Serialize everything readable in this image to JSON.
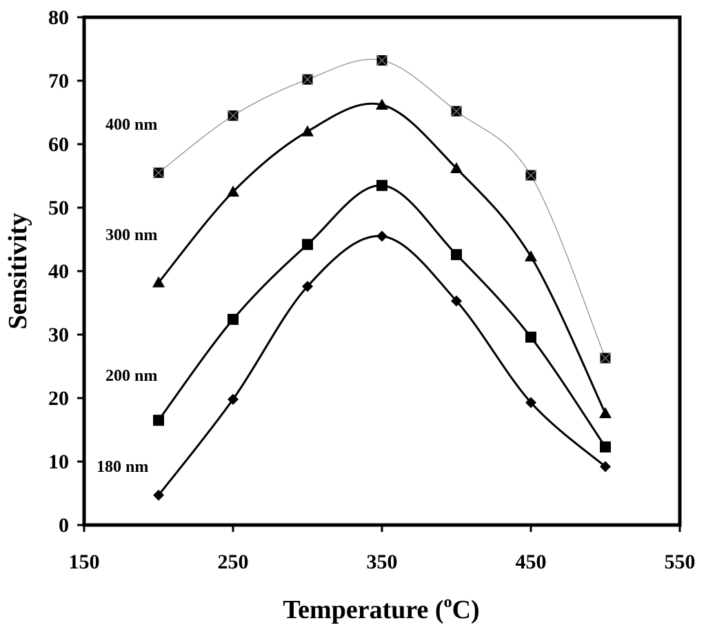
{
  "chart_data": {
    "type": "line",
    "title": "",
    "xlabel": "Temperature (",
    "xlabel_sup": "o",
    "xlabel_suffix": "C)",
    "ylabel": "Sensitivity",
    "xlim": [
      150,
      550
    ],
    "ylim": [
      0,
      80
    ],
    "x_ticks": [
      150,
      250,
      350,
      450,
      550
    ],
    "y_ticks": [
      0,
      10,
      20,
      30,
      40,
      50,
      60,
      70,
      80
    ],
    "grid": false,
    "legend": "inline labels",
    "series": [
      {
        "name": "400 nm",
        "marker": "square-x",
        "line": "thin",
        "x": [
          200,
          250,
          300,
          350,
          400,
          450,
          500
        ],
        "y": [
          55.5,
          64.5,
          70.2,
          73.2,
          65.2,
          55.1,
          26.3
        ]
      },
      {
        "name": "300 nm",
        "marker": "triangle",
        "line": "thick",
        "x": [
          200,
          250,
          300,
          350,
          400,
          450,
          500
        ],
        "y": [
          38.2,
          52.5,
          62.0,
          66.2,
          56.2,
          42.3,
          17.6
        ]
      },
      {
        "name": "200 nm",
        "marker": "square",
        "line": "thick",
        "x": [
          200,
          250,
          300,
          350,
          400,
          450,
          500
        ],
        "y": [
          16.5,
          32.4,
          44.2,
          53.5,
          42.6,
          29.6,
          12.3
        ]
      },
      {
        "name": "180 nm",
        "marker": "diamond",
        "line": "thick",
        "x": [
          200,
          250,
          300,
          350,
          400,
          450,
          500
        ],
        "y": [
          4.7,
          19.8,
          37.6,
          45.5,
          35.3,
          19.3,
          9.2
        ]
      }
    ]
  }
}
